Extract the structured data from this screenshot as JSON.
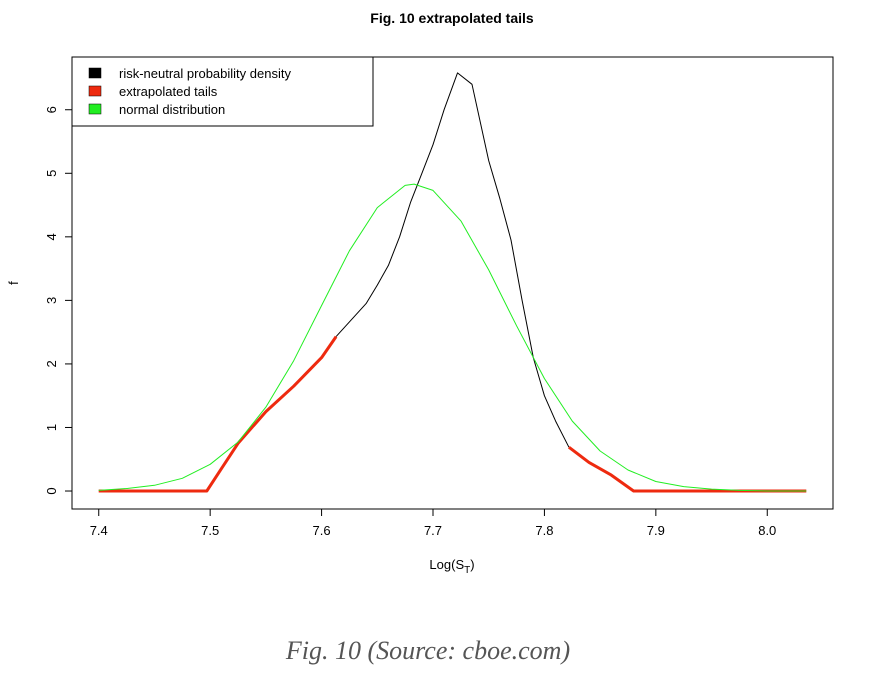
{
  "chart_data": {
    "type": "line",
    "title": "Fig. 10 extrapolated tails",
    "xlabel": {
      "base": "Log(S",
      "sub": "T",
      "close": ")"
    },
    "ylabel": "f",
    "xlim": [
      7.376,
      8.059
    ],
    "ylim": [
      -0.283,
      6.83
    ],
    "xticks": [
      7.4,
      7.5,
      7.6,
      7.7,
      7.8,
      7.9,
      {
        "value": 8.0,
        "label": "8.0"
      }
    ],
    "yticks": [
      0,
      1,
      2,
      3,
      4,
      5,
      6
    ],
    "legend": "top-left",
    "series": [
      {
        "name": "risk-neutral probability density",
        "color": "#000000",
        "width": 1,
        "x": [
          7.613,
          7.64,
          7.65,
          7.66,
          7.67,
          7.68,
          7.69,
          7.7,
          7.71,
          7.722,
          7.735,
          7.75,
          7.76,
          7.77,
          7.78,
          7.79,
          7.8,
          7.81,
          7.822
        ],
        "values": [
          2.43,
          2.95,
          3.24,
          3.55,
          4.0,
          4.55,
          5.0,
          5.45,
          6.0,
          6.58,
          6.4,
          5.2,
          4.6,
          3.95,
          3.0,
          2.1,
          1.5,
          1.1,
          0.69
        ]
      },
      {
        "name": "extrapolated tails",
        "color": "#ee2a0f",
        "width": 3,
        "x": [
          7.4,
          7.497,
          7.51,
          7.525,
          7.55,
          7.575,
          7.6,
          7.613,
          7.7,
          7.822,
          7.84,
          7.86,
          7.88,
          7.95,
          8.035
        ],
        "values": [
          0,
          0,
          0.35,
          0.75,
          1.25,
          1.65,
          2.1,
          2.43,
          null,
          0.69,
          0.45,
          0.25,
          0,
          0,
          0
        ]
      },
      {
        "name": "normal distribution",
        "color": "#22ee22",
        "width": 1,
        "x": [
          7.4,
          7.425,
          7.45,
          7.475,
          7.5,
          7.525,
          7.55,
          7.575,
          7.6,
          7.625,
          7.65,
          7.675,
          7.683,
          7.7,
          7.725,
          7.75,
          7.775,
          7.8,
          7.825,
          7.85,
          7.875,
          7.9,
          7.925,
          7.95,
          7.975,
          8.0,
          8.035
        ],
        "values": [
          0.01,
          0.04,
          0.09,
          0.2,
          0.42,
          0.77,
          1.32,
          2.05,
          2.92,
          3.78,
          4.46,
          4.81,
          4.83,
          4.73,
          4.25,
          3.48,
          2.6,
          1.77,
          1.1,
          0.63,
          0.33,
          0.15,
          0.07,
          0.03,
          0.01,
          0,
          0
        ]
      }
    ]
  },
  "caption": "Fig. 10 (Source: cboe.com)"
}
